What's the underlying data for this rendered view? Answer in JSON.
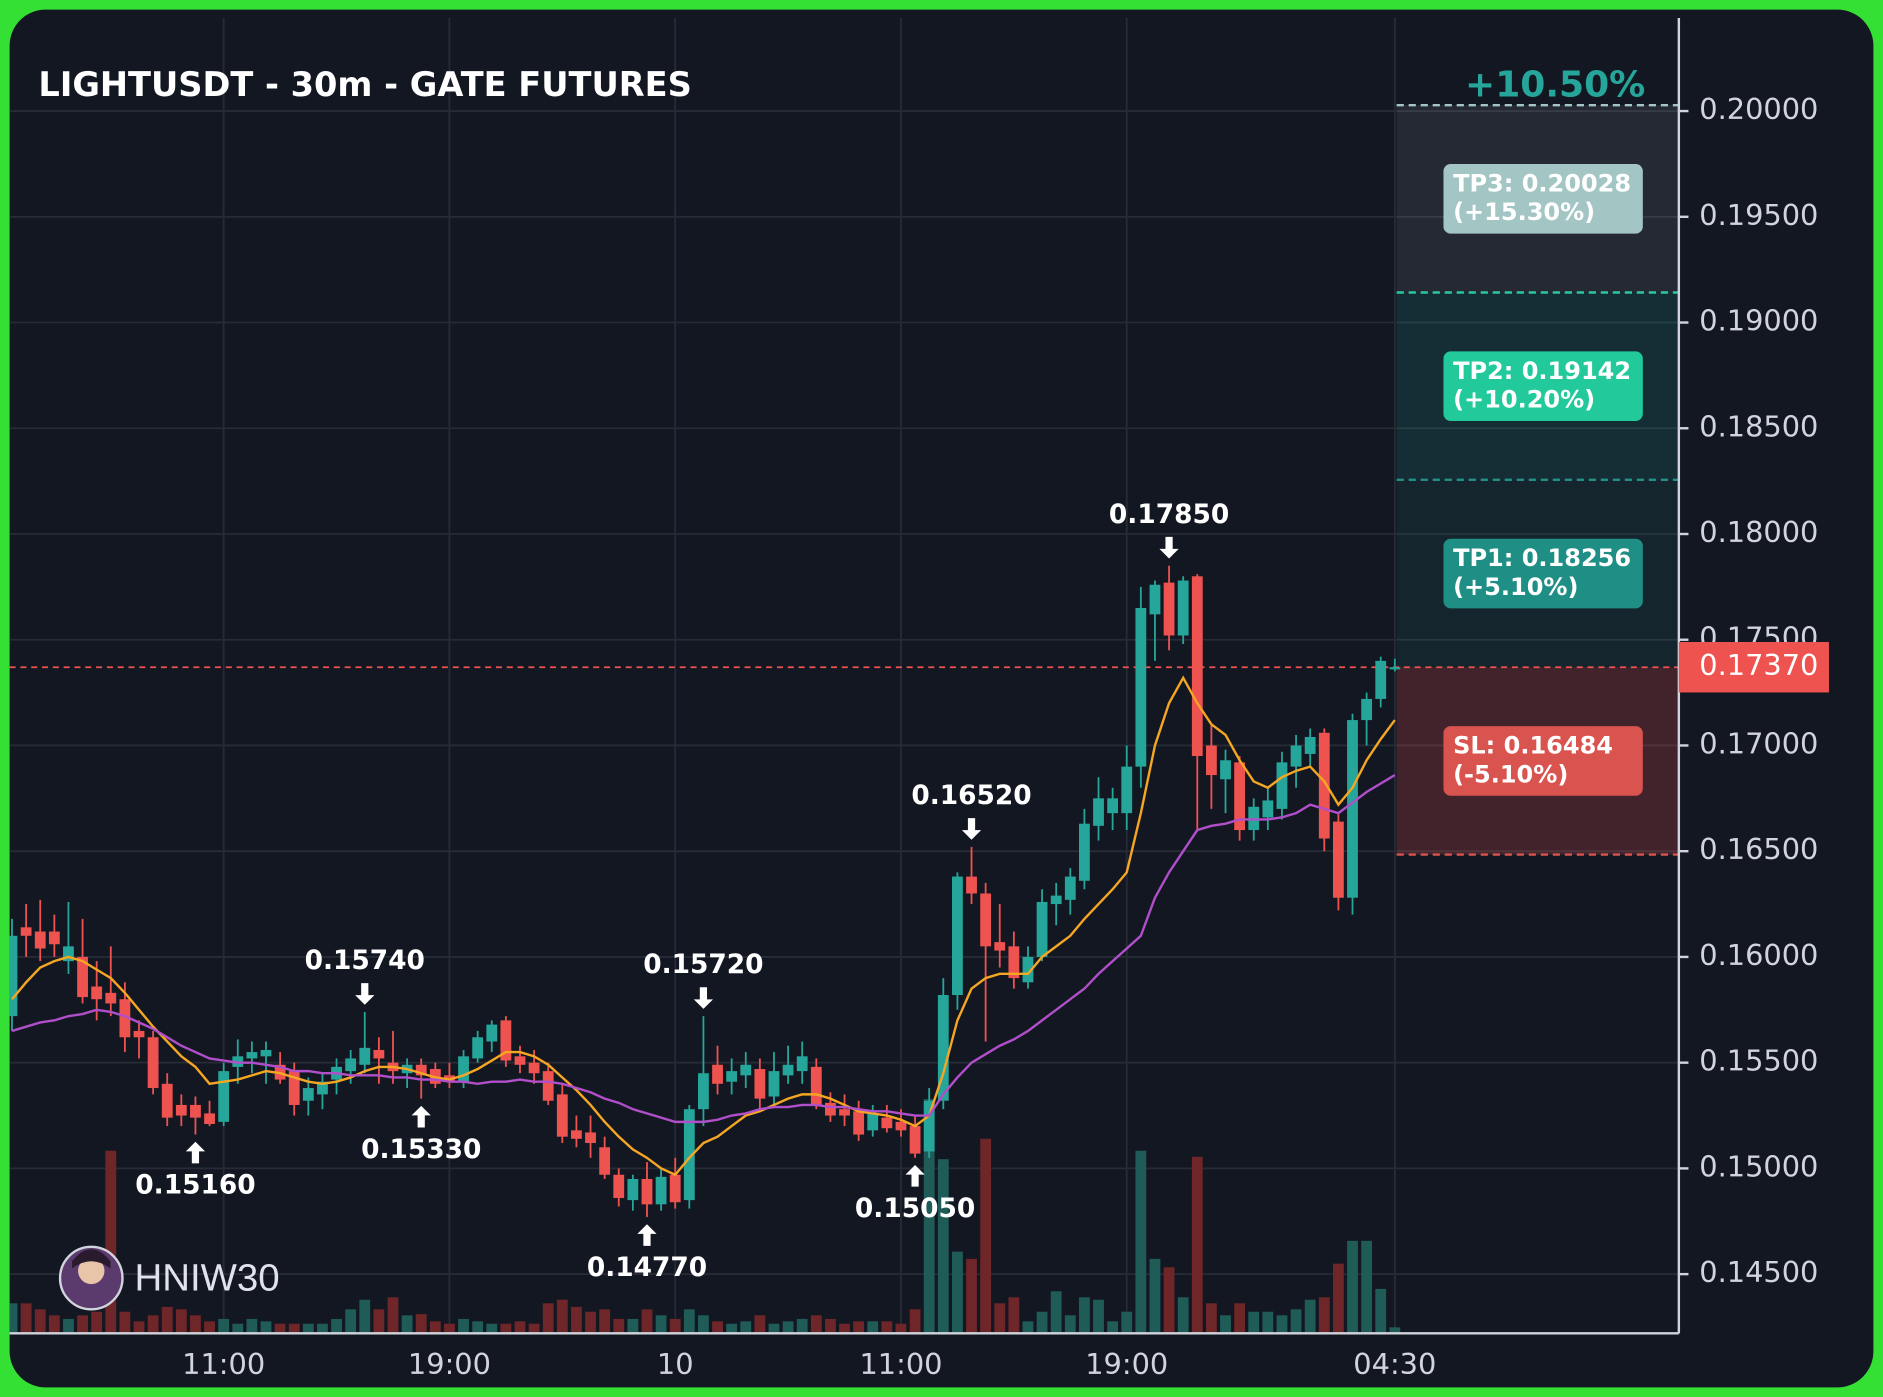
{
  "chart_data": {
    "type": "candlestick",
    "title": "LIGHTUSDT - 30m - GATE FUTURES",
    "watermark": "HNIW30",
    "performance": "+10.50%",
    "categories": [
      null,
      null,
      null,
      null,
      null,
      null,
      null,
      null,
      null,
      null,
      null,
      null,
      null,
      null,
      null,
      "11:00",
      null,
      null,
      null,
      null,
      null,
      null,
      null,
      null,
      null,
      null,
      null,
      null,
      null,
      null,
      null,
      "19:00",
      null,
      null,
      null,
      null,
      null,
      null,
      null,
      null,
      null,
      null,
      null,
      null,
      null,
      null,
      null,
      "10",
      null,
      null,
      null,
      null,
      null,
      null,
      null,
      null,
      null,
      null,
      null,
      null,
      null,
      null,
      null,
      "11:00",
      null,
      null,
      null,
      null,
      null,
      null,
      null,
      null,
      null,
      null,
      null,
      null,
      null,
      null,
      null,
      "19:00",
      null,
      null,
      null,
      null,
      null,
      null,
      null,
      null,
      null,
      null,
      null,
      null,
      null,
      null,
      null,
      null,
      null,
      null,
      "04:30"
    ],
    "open": [
      0.1572,
      0.1614,
      0.1612,
      0.1612,
      0.1598,
      0.16,
      0.1586,
      0.1583,
      0.158,
      0.1565,
      0.1562,
      0.154,
      0.153,
      0.153,
      0.1526,
      0.1522,
      0.1548,
      0.1552,
      0.1553,
      0.1549,
      0.1546,
      0.1532,
      0.1535,
      0.1542,
      0.1546,
      0.1549,
      0.1556,
      0.155,
      0.1545,
      0.1549,
      0.1547,
      0.1544,
      0.1541,
      0.1552,
      0.156,
      0.157,
      0.1553,
      0.155,
      0.1546,
      0.1535,
      0.1518,
      0.1517,
      0.151,
      0.1497,
      0.1485,
      0.1495,
      0.1483,
      0.1497,
      0.1485,
      0.1528,
      0.1549,
      0.1541,
      0.1544,
      0.1547,
      0.1534,
      0.1544,
      0.1546,
      0.1548,
      0.1531,
      0.1528,
      0.1527,
      0.1518,
      0.1524,
      0.1522,
      0.152,
      0.1508,
      0.1532,
      0.1582,
      0.1638,
      0.163,
      0.1607,
      0.1605,
      0.1588,
      0.16,
      0.1625,
      0.1627,
      0.1636,
      0.1662,
      0.1668,
      0.1668,
      0.169,
      0.1762,
      0.1777,
      0.1752,
      0.178,
      0.17,
      0.1684,
      0.1692,
      0.166,
      0.1666,
      0.167,
      0.169,
      0.1696,
      0.1706,
      0.1664,
      0.1628,
      0.1712,
      0.1722,
      0.1736
    ],
    "high": [
      0.1618,
      0.1625,
      0.1627,
      0.162,
      0.1626,
      0.1618,
      0.1598,
      0.1605,
      0.1588,
      0.157,
      0.1565,
      0.1545,
      0.1535,
      0.1534,
      0.1532,
      0.155,
      0.1561,
      0.156,
      0.156,
      0.1555,
      0.155,
      0.1543,
      0.1545,
      0.1552,
      0.1556,
      0.1574,
      0.1562,
      0.1565,
      0.1552,
      0.1552,
      0.155,
      0.155,
      0.1556,
      0.1565,
      0.157,
      0.1572,
      0.1558,
      0.1556,
      0.155,
      0.154,
      0.1525,
      0.1525,
      0.1515,
      0.15,
      0.1497,
      0.1503,
      0.15,
      0.1505,
      0.153,
      0.1572,
      0.1558,
      0.1552,
      0.1555,
      0.1552,
      0.1555,
      0.1558,
      0.156,
      0.1552,
      0.1536,
      0.1535,
      0.1532,
      0.153,
      0.153,
      0.1528,
      0.1525,
      0.1538,
      0.159,
      0.164,
      0.1652,
      0.1635,
      0.1625,
      0.1612,
      0.1605,
      0.1632,
      0.1635,
      0.1642,
      0.167,
      0.1685,
      0.168,
      0.17,
      0.1775,
      0.1778,
      0.1785,
      0.178,
      0.1781,
      0.171,
      0.1698,
      0.1695,
      0.1675,
      0.168,
      0.1697,
      0.1705,
      0.1708,
      0.1708,
      0.1668,
      0.1715,
      0.1725,
      0.1742,
      0.1741
    ],
    "low": [
      0.1565,
      0.16,
      0.1598,
      0.16,
      0.1592,
      0.1578,
      0.157,
      0.1572,
      0.1555,
      0.1552,
      0.1535,
      0.152,
      0.152,
      0.1516,
      0.152,
      0.152,
      0.154,
      0.1545,
      0.154,
      0.154,
      0.1525,
      0.1525,
      0.1528,
      0.1535,
      0.154,
      0.1545,
      0.154,
      0.154,
      0.1538,
      0.1533,
      0.1538,
      0.1538,
      0.1538,
      0.155,
      0.1555,
      0.1548,
      0.1545,
      0.154,
      0.153,
      0.1512,
      0.151,
      0.1505,
      0.1495,
      0.1482,
      0.148,
      0.1477,
      0.148,
      0.1481,
      0.1481,
      0.152,
      0.1535,
      0.1535,
      0.1538,
      0.1528,
      0.153,
      0.154,
      0.154,
      0.1528,
      0.1522,
      0.152,
      0.1513,
      0.1515,
      0.1517,
      0.1515,
      0.1505,
      0.1505,
      0.1528,
      0.1575,
      0.1625,
      0.156,
      0.1595,
      0.1585,
      0.1585,
      0.1598,
      0.1615,
      0.162,
      0.1632,
      0.1655,
      0.166,
      0.166,
      0.168,
      0.174,
      0.1745,
      0.1748,
      0.166,
      0.167,
      0.1668,
      0.1655,
      0.1655,
      0.166,
      0.1665,
      0.168,
      0.169,
      0.165,
      0.1622,
      0.162,
      0.17,
      0.1718,
      0.1735
    ],
    "close": [
      0.161,
      0.161,
      0.1604,
      0.1606,
      0.1605,
      0.1581,
      0.158,
      0.1578,
      0.1562,
      0.1562,
      0.1538,
      0.1524,
      0.1525,
      0.1524,
      0.1521,
      0.1546,
      0.1553,
      0.1555,
      0.1556,
      0.1542,
      0.153,
      0.1538,
      0.1541,
      0.1548,
      0.1552,
      0.1557,
      0.1552,
      0.1546,
      0.1549,
      0.1544,
      0.154,
      0.1541,
      0.1553,
      0.1562,
      0.1568,
      0.1551,
      0.1549,
      0.1545,
      0.1532,
      0.1515,
      0.1514,
      0.1512,
      0.1497,
      0.1486,
      0.1495,
      0.1483,
      0.1496,
      0.1484,
      0.1528,
      0.1545,
      0.154,
      0.1546,
      0.1549,
      0.1533,
      0.1546,
      0.1549,
      0.1553,
      0.153,
      0.1525,
      0.1525,
      0.1516,
      0.1526,
      0.1519,
      0.1518,
      0.1507,
      0.1532,
      0.1582,
      0.1638,
      0.163,
      0.1605,
      0.1603,
      0.159,
      0.16,
      0.1626,
      0.1629,
      0.1638,
      0.1663,
      0.1675,
      0.1675,
      0.169,
      0.1765,
      0.1776,
      0.1752,
      0.1778,
      0.1695,
      0.1686,
      0.1693,
      0.166,
      0.1671,
      0.1674,
      0.1692,
      0.17,
      0.1704,
      0.1656,
      0.1628,
      0.1712,
      0.1722,
      0.174,
      0.1737
    ],
    "high_labels": [
      null,
      null,
      null,
      null,
      null,
      null,
      null,
      null,
      null,
      null,
      null,
      null,
      null,
      null,
      null,
      null,
      null,
      null,
      null,
      null,
      null,
      null,
      null,
      null,
      null,
      "0.15740",
      null,
      null,
      null,
      null,
      null,
      null,
      null,
      null,
      null,
      null,
      null,
      null,
      null,
      null,
      null,
      null,
      null,
      null,
      null,
      null,
      null,
      null,
      null,
      "0.15720",
      null,
      null,
      null,
      null,
      null,
      null,
      null,
      null,
      null,
      null,
      null,
      null,
      null,
      null,
      null,
      null,
      null,
      null,
      "0.16520",
      null,
      null,
      null,
      null,
      null,
      null,
      null,
      null,
      null,
      null,
      null,
      null,
      null,
      "0.17850",
      null,
      null,
      null,
      null,
      null,
      null,
      null,
      null,
      null,
      null,
      null,
      null,
      null,
      null,
      null,
      null
    ],
    "low_labels": [
      null,
      null,
      null,
      null,
      null,
      null,
      null,
      null,
      null,
      null,
      null,
      null,
      null,
      "0.15160",
      null,
      null,
      null,
      null,
      null,
      null,
      null,
      null,
      null,
      null,
      null,
      null,
      null,
      null,
      null,
      "0.15330",
      null,
      null,
      null,
      null,
      null,
      null,
      null,
      null,
      null,
      null,
      null,
      null,
      null,
      null,
      null,
      "0.14770",
      null,
      null,
      null,
      null,
      null,
      null,
      null,
      null,
      null,
      null,
      null,
      null,
      null,
      null,
      null,
      null,
      null,
      null,
      "0.15050",
      null,
      null,
      null,
      null,
      null,
      null,
      null,
      null,
      null,
      null,
      null,
      null,
      null,
      null,
      null,
      null,
      null,
      null,
      null,
      null,
      null,
      null,
      null,
      null,
      null,
      null,
      null,
      null,
      null,
      null,
      null,
      null,
      null,
      null
    ],
    "volume": [
      25,
      25,
      20,
      15,
      12,
      15,
      18,
      152,
      18,
      10,
      15,
      22,
      20,
      15,
      10,
      12,
      8,
      12,
      10,
      8,
      8,
      8,
      8,
      12,
      20,
      28,
      20,
      30,
      15,
      16,
      10,
      8,
      12,
      10,
      8,
      8,
      10,
      8,
      25,
      28,
      22,
      18,
      20,
      12,
      12,
      20,
      15,
      12,
      20,
      15,
      10,
      8,
      10,
      15,
      8,
      10,
      12,
      15,
      12,
      8,
      10,
      10,
      10,
      8,
      20,
      195,
      145,
      68,
      62,
      162,
      25,
      30,
      10,
      18,
      35,
      15,
      30,
      28,
      10,
      18,
      152,
      62,
      55,
      30,
      147,
      25,
      15,
      25,
      18,
      18,
      15,
      20,
      28,
      30,
      58,
      77,
      77,
      37,
      5
    ],
    "up_color": "#26a69a",
    "down_color": "#ef5350",
    "volume_up_color": "#1f5c57",
    "volume_down_color": "#6e2628",
    "moving_averages": [
      {
        "color": "#f5a623",
        "values": [
          0.158,
          0.1588,
          0.1595,
          0.1598,
          0.16,
          0.1598,
          0.1594,
          0.159,
          0.1583,
          0.1575,
          0.1567,
          0.156,
          0.1553,
          0.1548,
          0.154,
          0.1541,
          0.1542,
          0.1544,
          0.1546,
          0.1545,
          0.1543,
          0.1541,
          0.154,
          0.1541,
          0.1543,
          0.1546,
          0.1548,
          0.1548,
          0.1547,
          0.1545,
          0.1543,
          0.1542,
          0.1544,
          0.1547,
          0.1551,
          0.1555,
          0.1555,
          0.1553,
          0.1549,
          0.1543,
          0.1537,
          0.153,
          0.1522,
          0.1515,
          0.1509,
          0.1505,
          0.15,
          0.1497,
          0.1505,
          0.1512,
          0.1515,
          0.152,
          0.1525,
          0.1527,
          0.153,
          0.1533,
          0.1535,
          0.1535,
          0.1533,
          0.153,
          0.1527,
          0.1526,
          0.1525,
          0.1523,
          0.152,
          0.1525,
          0.1545,
          0.157,
          0.1585,
          0.159,
          0.1592,
          0.1592,
          0.1592,
          0.16,
          0.1605,
          0.161,
          0.1618,
          0.1625,
          0.1632,
          0.164,
          0.1668,
          0.17,
          0.172,
          0.1732,
          0.172,
          0.171,
          0.1705,
          0.1693,
          0.1683,
          0.168,
          0.1685,
          0.1688,
          0.169,
          0.1683,
          0.1672,
          0.168,
          0.1693,
          0.1703,
          0.1712
        ]
      },
      {
        "color": "#b04fc9",
        "values": [
          0.1565,
          0.1567,
          0.1569,
          0.157,
          0.1572,
          0.1573,
          0.1575,
          0.1574,
          0.1572,
          0.1569,
          0.1566,
          0.1562,
          0.1558,
          0.1555,
          0.1552,
          0.1551,
          0.155,
          0.155,
          0.1549,
          0.1548,
          0.1546,
          0.1546,
          0.1545,
          0.1545,
          0.1544,
          0.1544,
          0.1544,
          0.1543,
          0.1543,
          0.1542,
          0.1542,
          0.1541,
          0.1541,
          0.154,
          0.1541,
          0.1541,
          0.1542,
          0.1541,
          0.1541,
          0.154,
          0.1538,
          0.1536,
          0.1533,
          0.1531,
          0.1528,
          0.1526,
          0.1524,
          0.1522,
          0.1522,
          0.1522,
          0.1523,
          0.1525,
          0.1526,
          0.1528,
          0.1529,
          0.1529,
          0.153,
          0.153,
          0.1529,
          0.1529,
          0.1528,
          0.1527,
          0.1527,
          0.1526,
          0.1525,
          0.1525,
          0.1535,
          0.1543,
          0.155,
          0.1554,
          0.1558,
          0.1561,
          0.1565,
          0.157,
          0.1575,
          0.158,
          0.1585,
          0.1592,
          0.1598,
          0.1604,
          0.161,
          0.1628,
          0.164,
          0.165,
          0.166,
          0.1662,
          0.1663,
          0.1665,
          0.1665,
          0.1665,
          0.1666,
          0.1668,
          0.1672,
          0.167,
          0.1668,
          0.1673,
          0.1678,
          0.1682,
          0.1686
        ]
      }
    ],
    "current_price": {
      "value": 0.1737,
      "label": "0.17370",
      "color": "#ef5350"
    },
    "levels": [
      {
        "value": 0.18256,
        "label": "TP1: 0.18256",
        "change": "(+5.10%)",
        "color": "#1f8f85"
      },
      {
        "value": 0.19142,
        "label": "TP2: 0.19142",
        "change": "(+10.20%)",
        "color": "#22c99a"
      },
      {
        "value": 0.20028,
        "label": "TP3: 0.20028",
        "change": "(+15.30%)",
        "color": "#a3c6c4"
      },
      {
        "value": 0.16484,
        "label": "SL: 0.16484",
        "change": "(-5.10%)",
        "color": "#d9534f"
      }
    ],
    "ylim": [
      0.1422,
      0.2044
    ],
    "yticks": [
      {
        "value": 0.145,
        "label": "0.14500"
      },
      {
        "value": 0.15,
        "label": "0.15000"
      },
      {
        "value": 0.155,
        "label": "0.15500"
      },
      {
        "value": 0.16,
        "label": "0.16000"
      },
      {
        "value": 0.165,
        "label": "0.16500"
      },
      {
        "value": 0.17,
        "label": "0.17000"
      },
      {
        "value": 0.175,
        "label": "0.17500"
      },
      {
        "value": 0.18,
        "label": "0.18000"
      },
      {
        "value": 0.185,
        "label": "0.18500"
      },
      {
        "value": 0.19,
        "label": "0.19000"
      },
      {
        "value": 0.195,
        "label": "0.19500"
      },
      {
        "value": 0.2,
        "label": "0.20000"
      }
    ],
    "grid": true
  }
}
